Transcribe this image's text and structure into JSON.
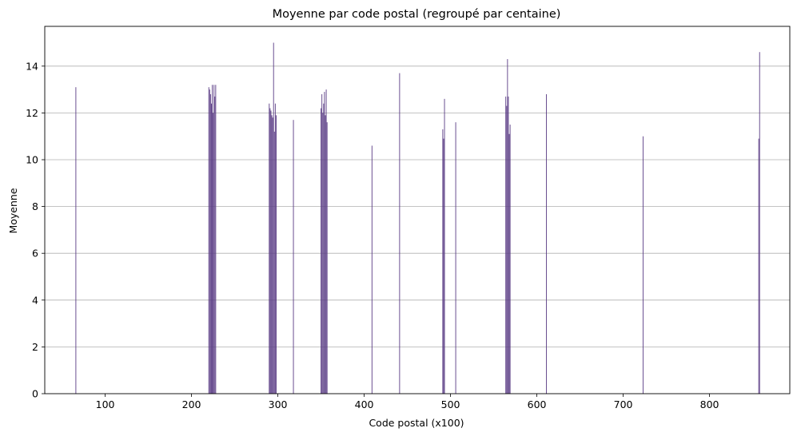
{
  "chart_data": {
    "type": "bar",
    "title": "Moyenne par code postal (regroupé par centaine)",
    "xlabel": "Code postal (x100)",
    "ylabel": "Moyenne",
    "xlim": [
      30,
      893
    ],
    "ylim": [
      0,
      15.7
    ],
    "xticks": [
      100,
      200,
      300,
      400,
      500,
      600,
      700,
      800
    ],
    "yticks": [
      0,
      2,
      4,
      6,
      8,
      10,
      12,
      14
    ],
    "grid": "y",
    "bar_width": 0.8,
    "bar_color": "#5a3c85",
    "series": [
      {
        "x": [
          66,
          220,
          221,
          222,
          223,
          224,
          225,
          226,
          227,
          228,
          290,
          291,
          292,
          293,
          294,
          295,
          296,
          297,
          298,
          318,
          350,
          351,
          352,
          353,
          354,
          355,
          356,
          357,
          409,
          441,
          491,
          492,
          493,
          506,
          564,
          565,
          566,
          567,
          568,
          569,
          611,
          723,
          857,
          858
        ],
        "values": [
          13.1,
          13.1,
          13.0,
          12.8,
          12.4,
          13.2,
          12.0,
          13.2,
          12.7,
          13.2,
          12.4,
          12.2,
          12.1,
          11.9,
          11.8,
          15.0,
          11.2,
          12.4,
          11.9,
          11.7,
          12.2,
          12.8,
          12.0,
          12.4,
          12.9,
          11.9,
          13.0,
          11.6,
          10.6,
          13.7,
          11.3,
          10.9,
          12.6,
          11.6,
          12.7,
          12.3,
          14.3,
          12.7,
          11.1,
          11.5,
          12.8,
          11.0,
          10.9,
          14.6
        ]
      }
    ]
  }
}
